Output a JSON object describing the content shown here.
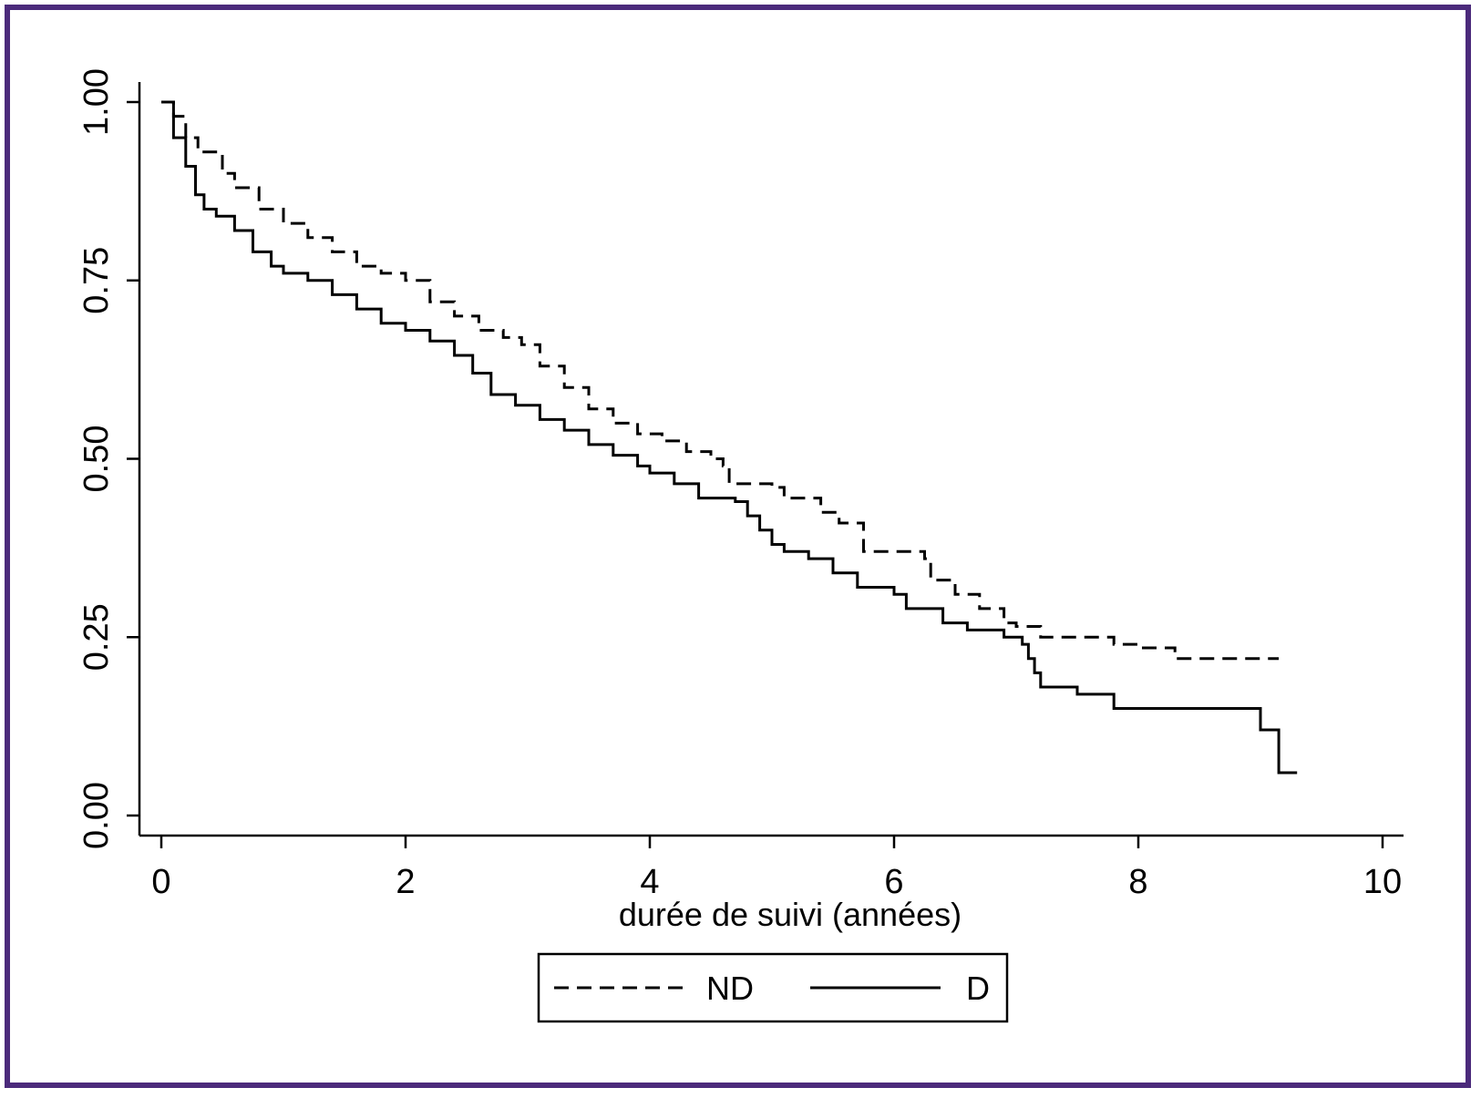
{
  "frame_color": "#4b2a7b",
  "chart_data": {
    "type": "line",
    "xlabel": "durée de suivi (années)",
    "ylabel": "",
    "xlim": [
      0,
      10
    ],
    "ylim": [
      0,
      1
    ],
    "x_ticks": [
      0,
      2,
      4,
      6,
      8,
      10
    ],
    "x_tick_labels": [
      "0",
      "2",
      "4",
      "6",
      "8",
      "10"
    ],
    "y_ticks": [
      0,
      0.25,
      0.5,
      0.75,
      1.0
    ],
    "y_tick_labels": [
      "0.00",
      "0.25",
      "0.50",
      "0.75",
      "1.00"
    ],
    "grid": false,
    "legend_position": "bottom",
    "series": [
      {
        "name": "ND",
        "line_style": "dashed",
        "color": "#000000",
        "x": [
          0,
          0.1,
          0.2,
          0.3,
          0.5,
          0.6,
          0.8,
          1.0,
          1.2,
          1.4,
          1.6,
          1.8,
          2.0,
          2.2,
          2.4,
          2.6,
          2.8,
          2.95,
          3.1,
          3.3,
          3.5,
          3.7,
          3.9,
          4.1,
          4.3,
          4.5,
          4.6,
          4.65,
          5.0,
          5.1,
          5.4,
          5.55,
          5.75,
          6.25,
          6.3,
          6.5,
          6.7,
          6.9,
          7.0,
          7.2,
          7.7,
          7.8,
          8.0,
          8.3,
          9.15
        ],
        "y": [
          1.0,
          0.98,
          0.95,
          0.93,
          0.9,
          0.88,
          0.85,
          0.83,
          0.81,
          0.79,
          0.77,
          0.76,
          0.75,
          0.72,
          0.7,
          0.68,
          0.67,
          0.66,
          0.63,
          0.6,
          0.57,
          0.55,
          0.535,
          0.525,
          0.51,
          0.5,
          0.49,
          0.465,
          0.46,
          0.445,
          0.425,
          0.41,
          0.37,
          0.36,
          0.33,
          0.31,
          0.29,
          0.27,
          0.265,
          0.25,
          0.25,
          0.24,
          0.235,
          0.22,
          0.22
        ]
      },
      {
        "name": "D",
        "line_style": "solid",
        "color": "#000000",
        "x": [
          0,
          0.1,
          0.2,
          0.28,
          0.35,
          0.45,
          0.6,
          0.75,
          0.9,
          1.0,
          1.2,
          1.4,
          1.6,
          1.8,
          2.0,
          2.2,
          2.4,
          2.55,
          2.7,
          2.9,
          3.1,
          3.3,
          3.5,
          3.7,
          3.9,
          4.0,
          4.2,
          4.4,
          4.7,
          4.8,
          4.9,
          5.0,
          5.1,
          5.3,
          5.5,
          5.7,
          6.0,
          6.1,
          6.4,
          6.6,
          6.9,
          7.05,
          7.1,
          7.15,
          7.2,
          7.5,
          7.8,
          8.5,
          9.0,
          9.15,
          9.3
        ],
        "y": [
          1.0,
          0.95,
          0.91,
          0.87,
          0.85,
          0.84,
          0.82,
          0.79,
          0.77,
          0.76,
          0.75,
          0.73,
          0.71,
          0.69,
          0.68,
          0.665,
          0.645,
          0.62,
          0.59,
          0.575,
          0.555,
          0.54,
          0.52,
          0.505,
          0.49,
          0.48,
          0.465,
          0.445,
          0.44,
          0.42,
          0.4,
          0.38,
          0.37,
          0.36,
          0.34,
          0.32,
          0.31,
          0.29,
          0.27,
          0.26,
          0.25,
          0.24,
          0.22,
          0.2,
          0.18,
          0.17,
          0.15,
          0.15,
          0.12,
          0.06,
          0.06
        ]
      }
    ]
  }
}
